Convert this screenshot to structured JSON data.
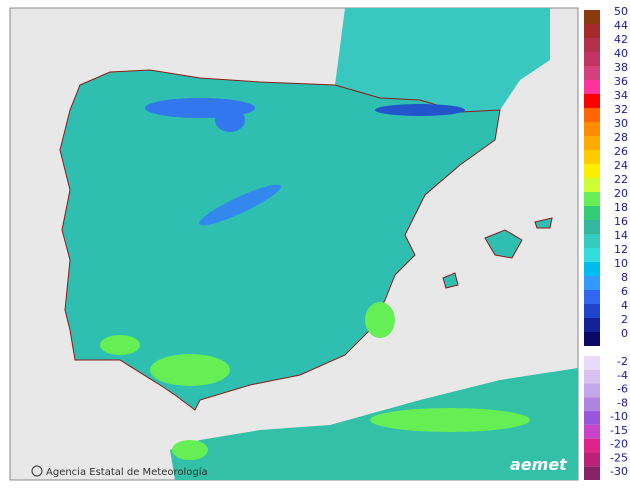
{
  "legend": {
    "items": [
      {
        "label": 50,
        "color": "#8b3a10"
      },
      {
        "label": 44,
        "color": "#a52a2a"
      },
      {
        "label": 42,
        "color": "#b2304a"
      },
      {
        "label": 40,
        "color": "#c23462"
      },
      {
        "label": 38,
        "color": "#d4407c"
      },
      {
        "label": 36,
        "color": "#ff3399"
      },
      {
        "label": 34,
        "color": "#ff0000"
      },
      {
        "label": 32,
        "color": "#ff6600"
      },
      {
        "label": 30,
        "color": "#ff8c00"
      },
      {
        "label": 28,
        "color": "#ffaa00"
      },
      {
        "label": 26,
        "color": "#ffcc00"
      },
      {
        "label": 24,
        "color": "#ffee00"
      },
      {
        "label": 22,
        "color": "#ccff33"
      },
      {
        "label": 20,
        "color": "#66ee55"
      },
      {
        "label": 18,
        "color": "#33cc77"
      },
      {
        "label": 16,
        "color": "#33b8a0"
      },
      {
        "label": 14,
        "color": "#33ccbb"
      },
      {
        "label": 12,
        "color": "#33dddd"
      },
      {
        "label": 10,
        "color": "#00bbee"
      },
      {
        "label": 8,
        "color": "#3399ff"
      },
      {
        "label": 6,
        "color": "#3366ee"
      },
      {
        "label": 4,
        "color": "#2244cc"
      },
      {
        "label": 2,
        "color": "#112299"
      },
      {
        "label": 0,
        "color": "#0a0a66"
      }
    ],
    "negative_items": [
      {
        "label": -2,
        "color": "#e8daf8"
      },
      {
        "label": -4,
        "color": "#d8c2f0"
      },
      {
        "label": -6,
        "color": "#c4a6ea"
      },
      {
        "label": -8,
        "color": "#ae84e2"
      },
      {
        "label": -10,
        "color": "#9a55dd"
      },
      {
        "label": -15,
        "color": "#c844c8"
      },
      {
        "label": -20,
        "color": "#dd2288"
      },
      {
        "label": -25,
        "color": "#bb2277"
      },
      {
        "label": -30,
        "color": "#882266"
      }
    ]
  },
  "attribution": "Agencia Estatal de Meteorología",
  "logo": "aemet"
}
